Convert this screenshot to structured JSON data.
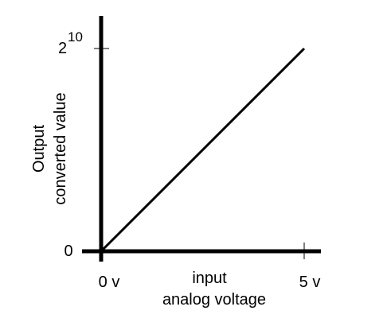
{
  "chart_data": {
    "type": "line",
    "title": "",
    "xlabel": [
      "input",
      "analog voltage"
    ],
    "ylabel": [
      "Output",
      "converted value"
    ],
    "x_ticks": [
      "0 v",
      "5 v"
    ],
    "y_ticks": [
      {
        "base": "0",
        "exp": ""
      },
      {
        "base": "2",
        "exp": "10"
      }
    ],
    "xlim": [
      0,
      5
    ],
    "ylim": [
      0,
      1024
    ],
    "grid": false,
    "series": [
      {
        "x": [
          0,
          5
        ],
        "y": [
          0,
          1024
        ]
      }
    ],
    "colors": {
      "line": "#000000",
      "axis": "#000000"
    }
  }
}
